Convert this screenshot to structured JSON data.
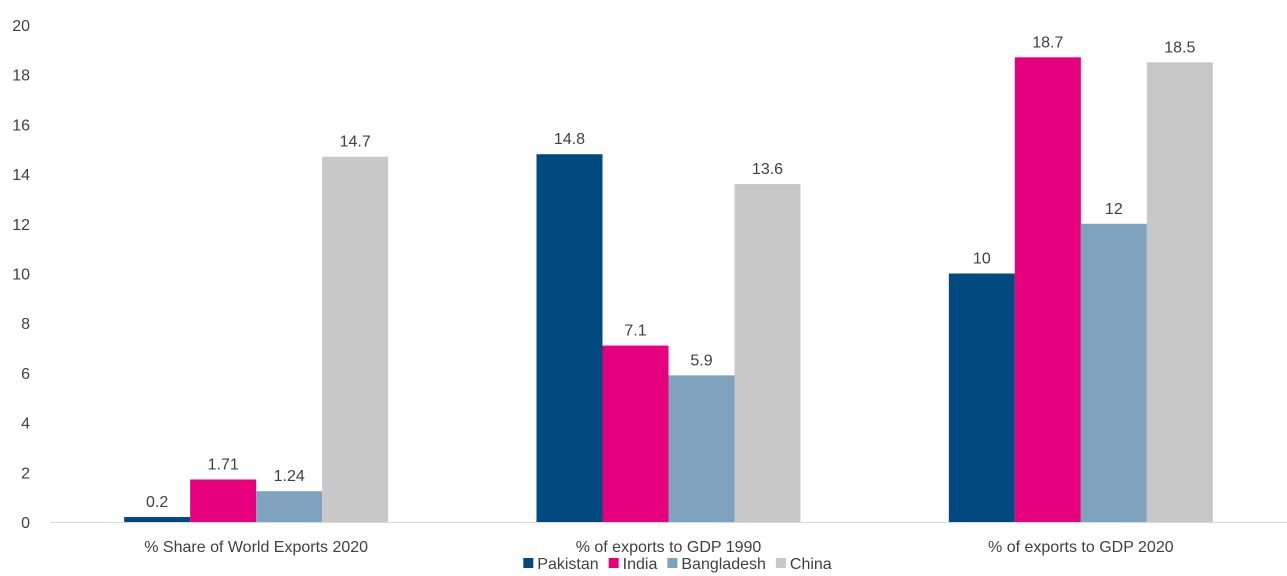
{
  "chart_data": {
    "type": "bar",
    "categories": [
      "% Share of World Exports 2020",
      "% of exports to GDP 1990",
      "% of exports to GDP 2020"
    ],
    "series": [
      {
        "name": "Pakistan",
        "color": "#004A7F",
        "values": [
          0.2,
          14.8,
          10
        ],
        "labels": [
          "0.2",
          "14.8",
          "10"
        ]
      },
      {
        "name": "India",
        "color": "#E6007E",
        "values": [
          1.71,
          7.1,
          18.7
        ],
        "labels": [
          "1.71",
          "7.1",
          "18.7"
        ]
      },
      {
        "name": "Bangladesh",
        "color": "#7FA3BF",
        "values": [
          1.24,
          5.9,
          12
        ],
        "labels": [
          "1.24",
          "5.9",
          "12"
        ]
      },
      {
        "name": "China",
        "color": "#C8C8C8",
        "values": [
          14.7,
          13.6,
          18.5
        ],
        "labels": [
          "14.7",
          "13.6",
          "18.5"
        ]
      }
    ],
    "ylim": [
      0,
      20
    ],
    "yticks": [
      0,
      2,
      4,
      6,
      8,
      10,
      12,
      14,
      16,
      18,
      20
    ],
    "title": "",
    "xlabel": "",
    "ylabel": "",
    "grid": false,
    "legend_position": "bottom"
  }
}
